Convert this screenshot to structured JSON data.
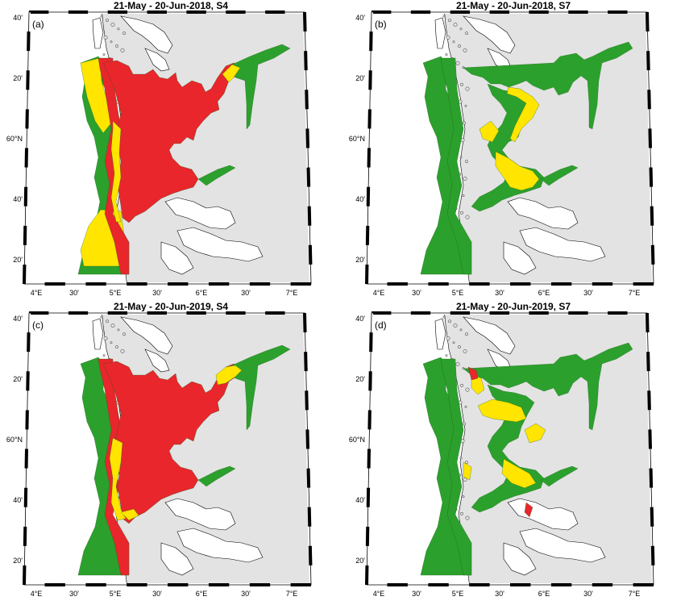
{
  "panels": [
    {
      "label": "(a)",
      "title": "21-May - 20-Jun-2018, S4",
      "scheme": "s4a"
    },
    {
      "label": "(b)",
      "title": "21-May - 20-Jun-2018, S7",
      "scheme": "s7b"
    },
    {
      "label": "(c)",
      "title": "21-May - 20-Jun-2019, S4",
      "scheme": "s4c"
    },
    {
      "label": "(d)",
      "title": "21-May - 20-Jun-2019, S7",
      "scheme": "s7d"
    }
  ],
  "lon_ticks": [
    "4°E",
    "30'",
    "5°E",
    "30'",
    "6°E",
    "30'",
    "7°E"
  ],
  "lat_ticks": [
    "40'",
    "20'",
    "60°N",
    "40'",
    "20'"
  ],
  "colors": {
    "land": "#e3e3e3",
    "green": "#2ca02c",
    "yellow": "#ffe500",
    "red": "#e8262b",
    "sea": "#ffffff",
    "coast": "#000000"
  }
}
